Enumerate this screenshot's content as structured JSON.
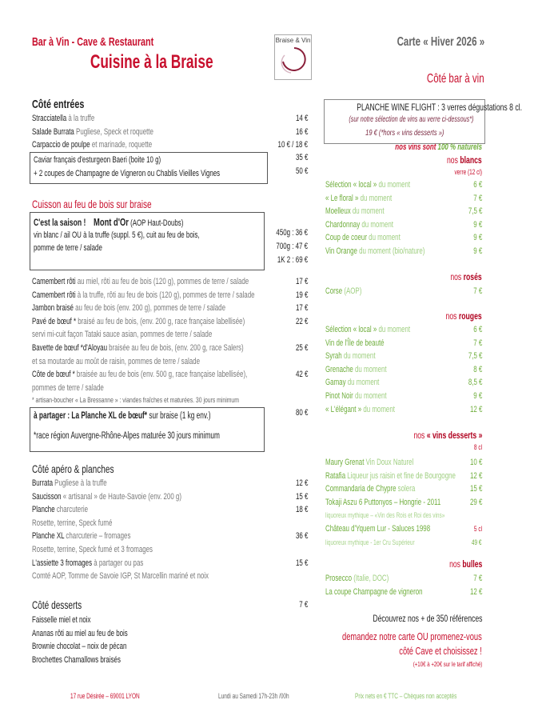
{
  "header": {
    "subtitle": "Bar à Vin - Cave & Restaurant",
    "title": "Cuisine à la Braise",
    "logo_text": "Braise & Vin",
    "carte": "Carte « Hiver 2026 »",
    "bar_title": "Côté bar à vin"
  },
  "entrees": {
    "heading": "Côté entrées",
    "items": [
      {
        "name": "Stracciatella",
        "desc": " à la truffe",
        "price": "14 €"
      },
      {
        "name": "Salade Burrata",
        "desc": " Pugliese, Speck et roquette",
        "price": "16 €"
      },
      {
        "name": "Carpaccio de poulpe",
        "desc": " et marinade, roquette",
        "price": "10 € / 18 €"
      }
    ],
    "caviar": {
      "line1": "Caviar français d'esturgeon Baeri (boite 10 g)",
      "line2": "+ 2 coupes de Champagne de Vigneron ou Chablis Vieilles Vignes",
      "price1": "35 €",
      "price2": "50 €"
    }
  },
  "cuisson": {
    "heading": "Cuisson au feu de bois sur braise",
    "montdor": {
      "lead": "C'est la saison !",
      "name": "Mont d'Or",
      "origin": " (AOP Haut-Doubs)",
      "line2": "vin blanc / ail OU à la truffe (suppl. 5 €), cuit au feu de bois,",
      "line3": "pomme de terre / salade",
      "prices": [
        "450g : 36 €",
        "700g : 47 €",
        "1K 2 :  69 €"
      ]
    },
    "items": [
      {
        "name": "Camembert rôti",
        "desc": " au miel, rôti au feu de bois (120 g), pommes de terre / salade",
        "price": "17 €"
      },
      {
        "name": "Camembert rôti",
        "desc": " à la truffe, rôti au feu de bois (120 g), pommes de terre / salade",
        "price": "19 €"
      },
      {
        "name": "Jambon braisé",
        "desc": " au feu de bois (env. 200 g), pommes de terre / salade",
        "price": "17 €"
      },
      {
        "name": "Pavé de bœuf *",
        "desc": " braisé au feu de bois, (env. 200 g, race française labellisée)",
        "price": "22 €"
      },
      {
        "desc": "servi mi-cuit façon Tataki sauce asian, pommes de terre / salade"
      },
      {
        "name": "Bavette de bœuf *d'Aloyau",
        "desc": " braisée au feu de bois, (env. 200 g, race Salers)",
        "price": "25 €"
      },
      {
        "desc": "et sa moutarde au moût de raisin, pommes de terre / salade"
      },
      {
        "name": "Côte de bœuf *",
        "desc": " braisée au feu de bois (env. 500 g, race française labellisée),",
        "price": "42 €"
      },
      {
        "desc": "pommes de terre / salade"
      },
      {
        "note": "* artisan-boucher « La Bressanne » : viandes fraîches et maturées. 30 jours minimum"
      }
    ],
    "planche": {
      "lead": "à partager : La Planche XL de bœuf*",
      "rest": " sur braise (1 kg env.)",
      "note": "*race région Auvergne-Rhône-Alpes maturée 30 jours minimum",
      "price": "80 €"
    }
  },
  "apero": {
    "heading": "Côté apéro & planches",
    "items": [
      {
        "name": "Burrata",
        "desc": " Pugliese à la truffe",
        "price": "12 €"
      },
      {
        "name": "Saucisson",
        "desc": " « artisanal » de Haute-Savoie (env. 200 g)",
        "price": "15 €"
      },
      {
        "name": "Planche",
        "desc": " charcuterie",
        "price": "18 €"
      },
      {
        "desc": "Rosette, terrine, Speck fumé"
      },
      {
        "name": "Planche XL",
        "desc": " charcuterie – fromages",
        "price": "36 €"
      },
      {
        "desc": "Rosette, terrine, Speck fumé et 3 fromages"
      },
      {
        "name": "L'assiette 3 fromages",
        "desc": " à partager ou pas",
        "price": "15 €"
      },
      {
        "desc": "Comté AOP, Tomme de Savoie IGP, St Marcellin mariné et noix"
      }
    ]
  },
  "desserts": {
    "heading": "Côté desserts",
    "price": "7 €",
    "items": [
      {
        "name": "Faisselle miel et noix"
      },
      {
        "name": "Ananas rôti au miel au feu de bois"
      },
      {
        "name": "Brownie chocolat – noix de pécan"
      },
      {
        "name": "Brochettes Chamallows braisés"
      }
    ]
  },
  "flight": {
    "title": "PLANCHE WINE FLIGHT : 3 verres dégustations 8 cl.",
    "line2": "(sur notre sélection de vins au verre ci-dessous*)",
    "line3": "19 € (*hors « vins desserts »)"
  },
  "naturels": {
    "a": "nos vins sont ",
    "b": "100 % naturels"
  },
  "blancs": {
    "pre": "nos ",
    "label": "blancs",
    "unit": "verre (12 cl)",
    "items": [
      {
        "name": "Sélection « local »",
        "desc": " du moment",
        "price": "6 €"
      },
      {
        "name": "« Le floral »",
        "desc": " du moment",
        "price": "7 €"
      },
      {
        "name": "Moelleux",
        "desc": " du moment",
        "price": "7,5 €"
      },
      {
        "name": "Chardonnay",
        "desc": " du moment",
        "price": "9 €"
      },
      {
        "name": "Coup de coeur",
        "desc": " du moment",
        "price": "9 €"
      },
      {
        "name": "Vin Orange",
        "desc": " du moment (bio/nature)",
        "price": "9 €"
      }
    ]
  },
  "roses": {
    "pre": "nos ",
    "label": "rosés",
    "items": [
      {
        "name": "Corse",
        "desc": " (AOP)",
        "price": "7 €"
      }
    ]
  },
  "rouges": {
    "pre": "nos ",
    "label": "rouges",
    "items": [
      {
        "name": "Sélection « local »",
        "desc": " du moment",
        "price": "6 €"
      },
      {
        "name": "Vin de l'Île de beauté",
        "desc": "",
        "price": "7 €"
      },
      {
        "name": "Syrah",
        "desc": " du moment",
        "price": "7,5 €"
      },
      {
        "name": "Grenache",
        "desc": " du moment",
        "price": "8 €"
      },
      {
        "name": "Gamay",
        "desc": " du moment",
        "price": "8,5 €"
      },
      {
        "name": "Pinot Noir",
        "desc": " du moment",
        "price": "9 €"
      },
      {
        "name": "« L'élégant »",
        "desc": " du moment",
        "price": "12 €"
      }
    ]
  },
  "vins_desserts": {
    "pre": "nos ",
    "label": "« vins desserts »",
    "unit": "8 cl",
    "items": [
      {
        "name": "Maury Grenat",
        "desc": " Vin Doux Naturel",
        "price": "10 €"
      },
      {
        "name": "Ratafia",
        "desc": " Liqueur jus raisin et fine de Bourgogne",
        "price": "12 €"
      },
      {
        "name": "Commandaria de Chypre",
        "desc": " solera",
        "price": "15 €"
      },
      {
        "name": "Tokaji Aszu 6 Puttonyos – Hongrie - 2011",
        "desc": "",
        "price": "29 €"
      },
      {
        "sub": "liquoreux mythique – «Vin des Rois et Roi des vins»"
      },
      {
        "name": "Château d'Yquem Lur - Saluces 1998",
        "desc": "",
        "unit": "5 cl"
      },
      {
        "sub": "liquoreux mythique - 1er Cru Supérieur",
        "price": "49 €"
      }
    ]
  },
  "bulles": {
    "pre": "nos ",
    "label": "bulles",
    "items": [
      {
        "name": "Prosecco",
        "desc": " (Italie, DOC)",
        "price": "7 €"
      },
      {
        "name": "La coupe Champagne de vigneron",
        "desc": "",
        "price": "12 €"
      }
    ]
  },
  "cave": {
    "line1": "Découvrez nos + de 350 références",
    "line2": "demandez notre carte OU promenez-vous",
    "line3": "côté Cave et choisissez !",
    "line4": "(+10€ à +20€ sur le tarif affiché)"
  },
  "footer": {
    "address": "17 rue Désirée – 69001 LYON",
    "hours": "Lundi au Samedi 17h-23h /00h",
    "payment": "Prix nets en € TTC – Chèques non acceptés"
  },
  "colors": {
    "accent": "#c8102e",
    "wine": "#6fae3c",
    "text": "#222222"
  }
}
